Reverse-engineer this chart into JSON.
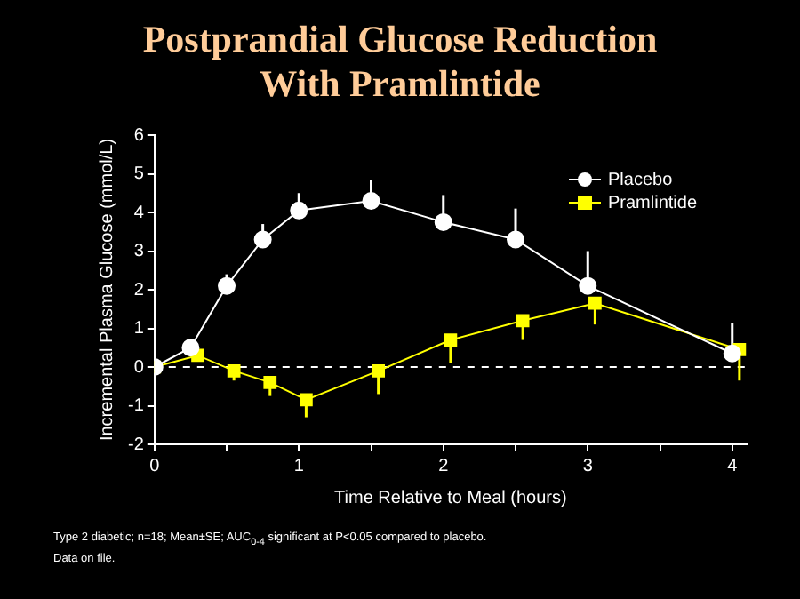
{
  "chart_data": {
    "type": "line",
    "title": "Postprandial Glucose Reduction With Pramlintide",
    "xlabel": "Time Relative to Meal (hours)",
    "ylabel": "Incremental Plasma Glucose (mmol/L)",
    "annotations": [
      "Type 2 diabetic; n=18; Mean±SE; AUC$_{0-4}$ significant at P<0.05 compared to placebo.",
      "Data on file."
    ],
    "series": [
      {
        "name": "Placebo",
        "color": "#ffffff",
        "marker": "circle",
        "x": [
          0,
          0.25,
          0.5,
          0.75,
          1,
          1.5,
          2,
          2.5,
          3,
          4
        ],
        "values": [
          0,
          0.5,
          2.1,
          3.3,
          4.05,
          4.3,
          3.75,
          3.3,
          2.1,
          0.35
        ],
        "errors": [
          null,
          null,
          [
            2.1,
            2.4
          ],
          [
            3.3,
            3.7
          ],
          [
            4.05,
            4.5
          ],
          [
            4.3,
            4.85
          ],
          [
            3.75,
            4.45
          ],
          [
            3.3,
            4.1
          ],
          [
            2.1,
            3.0
          ],
          [
            0.35,
            1.15
          ]
        ]
      },
      {
        "name": "Pramlintide",
        "color": "#ffff00",
        "marker": "square",
        "x": [
          0,
          0.3,
          0.55,
          0.8,
          1.05,
          1.55,
          2.05,
          2.55,
          3.05,
          4.05
        ],
        "values": [
          0,
          0.3,
          -0.1,
          -0.4,
          -0.85,
          -0.1,
          0.7,
          1.2,
          1.65,
          0.45
        ],
        "errors": [
          null,
          [
            0.15,
            0.3
          ],
          [
            -0.35,
            -0.1
          ],
          [
            -0.75,
            -0.4
          ],
          [
            -1.3,
            -0.85
          ],
          [
            -0.7,
            -0.1
          ],
          [
            0.1,
            0.7
          ],
          [
            0.7,
            1.2
          ],
          [
            1.1,
            1.65
          ],
          [
            -0.35,
            0.45
          ]
        ]
      }
    ],
    "xlim": [
      0,
      4.1
    ],
    "xticks": [
      0,
      {
        "value": 0.5,
        "label": null
      },
      1,
      {
        "value": 1.5,
        "label": null
      },
      2,
      {
        "value": 2.5,
        "label": null
      },
      3,
      {
        "value": 3.5,
        "label": null
      },
      4
    ],
    "ylim": [
      -2,
      6
    ],
    "yticks": [
      -2,
      -1,
      0,
      1,
      2,
      3,
      4,
      5,
      6
    ],
    "ref_lines": [
      {
        "axis": "y",
        "value": 0,
        "color": "#ffffff",
        "line_style": "dashed"
      }
    ],
    "grid": false,
    "legend": "top right"
  }
}
